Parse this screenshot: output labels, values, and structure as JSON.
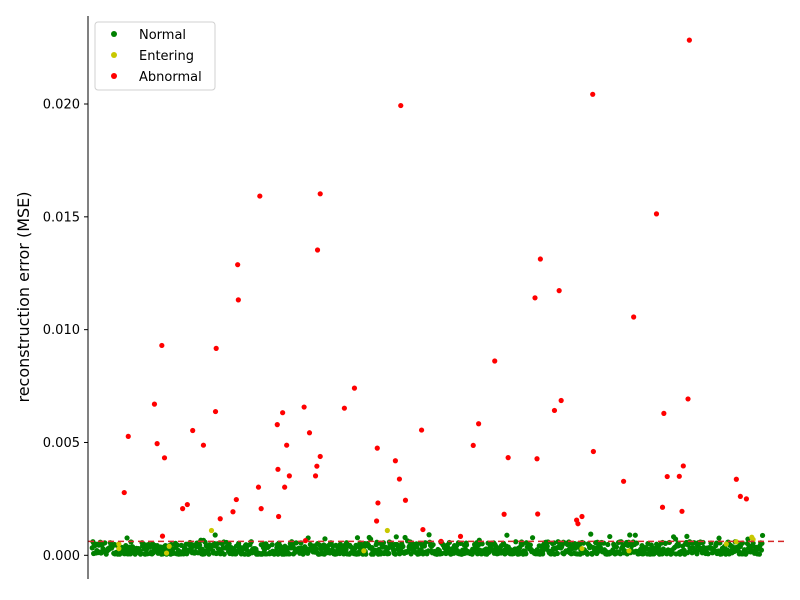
{
  "chart_data": {
    "type": "scatter",
    "title": "",
    "xlabel": "",
    "ylabel": "reconstruction error (MSE)",
    "xlim": [
      -6,
      1031
    ],
    "ylim": [
      -0.00105,
      0.0239
    ],
    "yticks": [
      0.0,
      0.005,
      0.01,
      0.015,
      0.02
    ],
    "ytick_labels": [
      "0.000",
      "0.005",
      "0.010",
      "0.015",
      "0.020"
    ],
    "x_axis_visible": false,
    "grid": false,
    "legend_position": "top-left",
    "threshold": {
      "value": 0.00062,
      "color": "#d62728",
      "style": "dashed"
    },
    "colors": {
      "Normal": "#008000",
      "Entering": "#c8c800",
      "Abnormal": "#ff0000"
    },
    "series": [
      {
        "name": "Normal",
        "points": []
      },
      {
        "name": "Entering",
        "points": [
          [
            40,
            0.0005
          ],
          [
            40,
            0.0003
          ],
          [
            111,
            0.0001
          ],
          [
            115,
            0.0004
          ],
          [
            178,
            0.0011
          ],
          [
            405,
            0.0002
          ],
          [
            440,
            0.0011
          ],
          [
            730,
            0.0003
          ],
          [
            800,
            0.0002
          ],
          [
            945,
            0.0005
          ],
          [
            960,
            0.0006
          ],
          [
            983,
            0.0008
          ],
          [
            985,
            0.0007
          ]
        ]
      },
      {
        "name": "Abnormal",
        "points": [
          [
            48,
            0.00278
          ],
          [
            54,
            0.00527
          ],
          [
            93,
            0.0067
          ],
          [
            97,
            0.00495
          ],
          [
            104,
            0.0093
          ],
          [
            108,
            0.00432
          ],
          [
            105,
            0.00085
          ],
          [
            135,
            0.00207
          ],
          [
            142,
            0.00225
          ],
          [
            150,
            0.00553
          ],
          [
            166,
            0.00488
          ],
          [
            184,
            0.00637
          ],
          [
            185,
            0.00917
          ],
          [
            191,
            0.00162
          ],
          [
            210,
            0.00193
          ],
          [
            215,
            0.00247
          ],
          [
            217,
            0.01288
          ],
          [
            218,
            0.01132
          ],
          [
            250,
            0.01592
          ],
          [
            248,
            0.00302
          ],
          [
            252,
            0.00207
          ],
          [
            276,
            0.00579
          ],
          [
            277,
            0.00381
          ],
          [
            278,
            0.00172
          ],
          [
            284,
            0.00632
          ],
          [
            287,
            0.00302
          ],
          [
            290,
            0.00488
          ],
          [
            294,
            0.00352
          ],
          [
            316,
            0.00657
          ],
          [
            318,
            0.00065
          ],
          [
            324,
            0.00543
          ],
          [
            333,
            0.00352
          ],
          [
            335,
            0.00395
          ],
          [
            336,
            0.01353
          ],
          [
            340,
            0.01602
          ],
          [
            340,
            0.00438
          ],
          [
            376,
            0.00652
          ],
          [
            391,
            0.00741
          ],
          [
            425,
            0.00475
          ],
          [
            424,
            0.00152
          ],
          [
            426,
            0.00232
          ],
          [
            452,
            0.00419
          ],
          [
            458,
            0.00338
          ],
          [
            460,
            0.01993
          ],
          [
            467,
            0.00244
          ],
          [
            491,
            0.00555
          ],
          [
            493,
            0.00114
          ],
          [
            520,
            0.00062
          ],
          [
            549,
            0.00084
          ],
          [
            568,
            0.00487
          ],
          [
            576,
            0.00583
          ],
          [
            600,
            0.00861
          ],
          [
            614,
            0.00182
          ],
          [
            620,
            0.00433
          ],
          [
            660,
            0.01141
          ],
          [
            663,
            0.00428
          ],
          [
            664,
            0.00183
          ],
          [
            668,
            0.01313
          ],
          [
            689,
            0.00642
          ],
          [
            696,
            0.01173
          ],
          [
            699,
            0.00686
          ],
          [
            722,
            0.00156
          ],
          [
            724,
            0.0014
          ],
          [
            730,
            0.00172
          ],
          [
            746,
            0.02043
          ],
          [
            747,
            0.0046
          ],
          [
            792,
            0.00328
          ],
          [
            807,
            0.01056
          ],
          [
            841,
            0.01513
          ],
          [
            850,
            0.00213
          ],
          [
            852,
            0.00629
          ],
          [
            857,
            0.00349
          ],
          [
            875,
            0.0035
          ],
          [
            879,
            0.00195
          ],
          [
            881,
            0.00396
          ],
          [
            888,
            0.00693
          ],
          [
            890,
            0.02283
          ],
          [
            960,
            0.00337
          ],
          [
            966,
            0.00261
          ],
          [
            975,
            0.0025
          ]
        ]
      }
    ]
  },
  "legend": {
    "entries": [
      "Normal",
      "Entering",
      "Abnormal"
    ]
  }
}
